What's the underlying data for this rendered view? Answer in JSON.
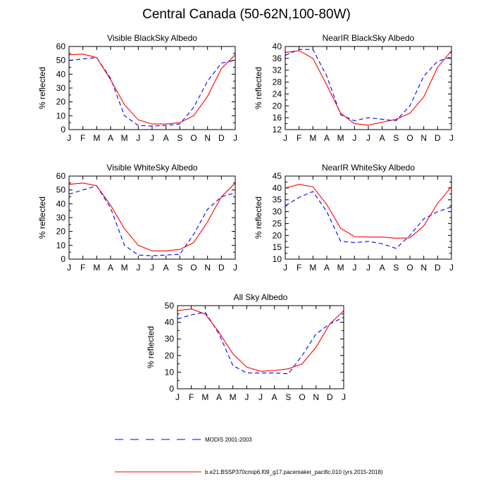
{
  "page_title": "Central Canada (50-62N,100-80W)",
  "legend": {
    "modis_label": "MODIS 2001-2003",
    "model_label": "b.e21.BSSP370cmip6.f09_g17.pacemaker_pacific.010 (yrs 2015-2018)"
  },
  "colors": {
    "modis": "#0000ff",
    "model": "#ff0000",
    "axis": "#000000"
  },
  "chart_data": [
    {
      "type": "line",
      "title": "Visible BlackSky Albedo",
      "ylabel": "% reflected",
      "categories": [
        "J",
        "F",
        "M",
        "A",
        "M",
        "J",
        "J",
        "A",
        "S",
        "O",
        "N",
        "D",
        "J"
      ],
      "ylim": [
        0,
        60
      ],
      "yticks": [
        0,
        10,
        20,
        30,
        40,
        50,
        60
      ],
      "series": [
        {
          "name": "MODIS 2001-2003",
          "style": "dashed",
          "color": "#0000ff",
          "values": [
            50,
            51,
            52,
            37,
            10,
            3,
            2.5,
            3,
            4,
            16,
            35,
            48,
            50
          ]
        },
        {
          "name": "b.e21.BSSP370cmip6.f09_g17.pacemaker_pacific.010 (yrs 2015-2018)",
          "style": "solid",
          "color": "#ff0000",
          "values": [
            54,
            54.5,
            52,
            36,
            18,
            7,
            4,
            4,
            5,
            10,
            24,
            44,
            54
          ]
        }
      ]
    },
    {
      "type": "line",
      "title": "NearIR BlackSky Albedo",
      "ylabel": "% reflected",
      "categories": [
        "J",
        "F",
        "M",
        "A",
        "M",
        "J",
        "J",
        "A",
        "S",
        "O",
        "N",
        "D",
        "J"
      ],
      "ylim": [
        12,
        40
      ],
      "yticks": [
        12,
        16,
        20,
        24,
        28,
        32,
        36,
        40
      ],
      "series": [
        {
          "name": "MODIS 2001-2003",
          "style": "dashed",
          "color": "#0000ff",
          "values": [
            37,
            39,
            39,
            30,
            17,
            15,
            16,
            15.5,
            15,
            20,
            30,
            35,
            36.5
          ]
        },
        {
          "name": "b.e21.BSSP370cmip6.f09_g17.pacemaker_pacific.010 (yrs 2015-2018)",
          "style": "solid",
          "color": "#ff0000",
          "values": [
            38,
            38.6,
            36,
            27,
            17.5,
            14,
            13.5,
            14.5,
            15.5,
            17.5,
            23,
            33,
            38.5
          ]
        }
      ]
    },
    {
      "type": "line",
      "title": "Visible WhiteSky Albedo",
      "ylabel": "% reflected",
      "categories": [
        "J",
        "F",
        "M",
        "A",
        "M",
        "J",
        "J",
        "A",
        "S",
        "O",
        "N",
        "D",
        "J"
      ],
      "ylim": [
        0,
        60
      ],
      "yticks": [
        0,
        10,
        20,
        30,
        40,
        50,
        60
      ],
      "series": [
        {
          "name": "MODIS 2001-2003",
          "style": "dashed",
          "color": "#0000ff",
          "values": [
            47,
            50,
            53,
            37,
            10,
            3,
            2.5,
            3,
            3.5,
            18,
            36,
            45,
            48
          ]
        },
        {
          "name": "b.e21.BSSP370cmip6.f09_g17.pacemaker_pacific.010 (yrs 2015-2018)",
          "style": "solid",
          "color": "#ff0000",
          "values": [
            54,
            55,
            53,
            39,
            22,
            10,
            6,
            6,
            7,
            12,
            27,
            45,
            55
          ]
        }
      ]
    },
    {
      "type": "line",
      "title": "NearIR WhiteSky Albedo",
      "ylabel": "% reflected",
      "categories": [
        "J",
        "F",
        "M",
        "A",
        "M",
        "J",
        "J",
        "A",
        "S",
        "O",
        "N",
        "D",
        "J"
      ],
      "ylim": [
        10,
        45
      ],
      "yticks": [
        10,
        15,
        20,
        25,
        30,
        35,
        40,
        45
      ],
      "series": [
        {
          "name": "MODIS 2001-2003",
          "style": "dashed",
          "color": "#0000ff",
          "values": [
            32.5,
            36,
            38.5,
            30,
            17.5,
            17,
            17.5,
            16.5,
            14.5,
            20,
            27,
            30,
            32
          ]
        },
        {
          "name": "b.e21.BSSP370cmip6.f09_g17.pacemaker_pacific.010 (yrs 2015-2018)",
          "style": "solid",
          "color": "#ff0000",
          "values": [
            40,
            41.5,
            40.5,
            33,
            23,
            19.5,
            19.3,
            19.3,
            18.8,
            19,
            24,
            33.5,
            40.5
          ]
        }
      ]
    },
    {
      "type": "line",
      "title": "All Sky Albedo",
      "ylabel": "% reflected",
      "categories": [
        "J",
        "F",
        "M",
        "A",
        "M",
        "J",
        "J",
        "A",
        "S",
        "O",
        "N",
        "D",
        "J"
      ],
      "ylim": [
        0,
        50
      ],
      "yticks": [
        0,
        10,
        20,
        30,
        40,
        50
      ],
      "series": [
        {
          "name": "MODIS 2001-2003",
          "style": "dashed",
          "color": "#0000ff",
          "values": [
            42,
            44.5,
            46,
            33,
            14,
            9.5,
            9.5,
            9.5,
            9,
            20,
            33,
            39,
            43
          ]
        },
        {
          "name": "b.e21.BSSP370cmip6.f09_g17.pacemaker_pacific.010 (yrs 2015-2018)",
          "style": "solid",
          "color": "#ff0000",
          "values": [
            47,
            48,
            45,
            34,
            21,
            13,
            10.5,
            11,
            12,
            15,
            25,
            39,
            47
          ]
        }
      ]
    }
  ]
}
